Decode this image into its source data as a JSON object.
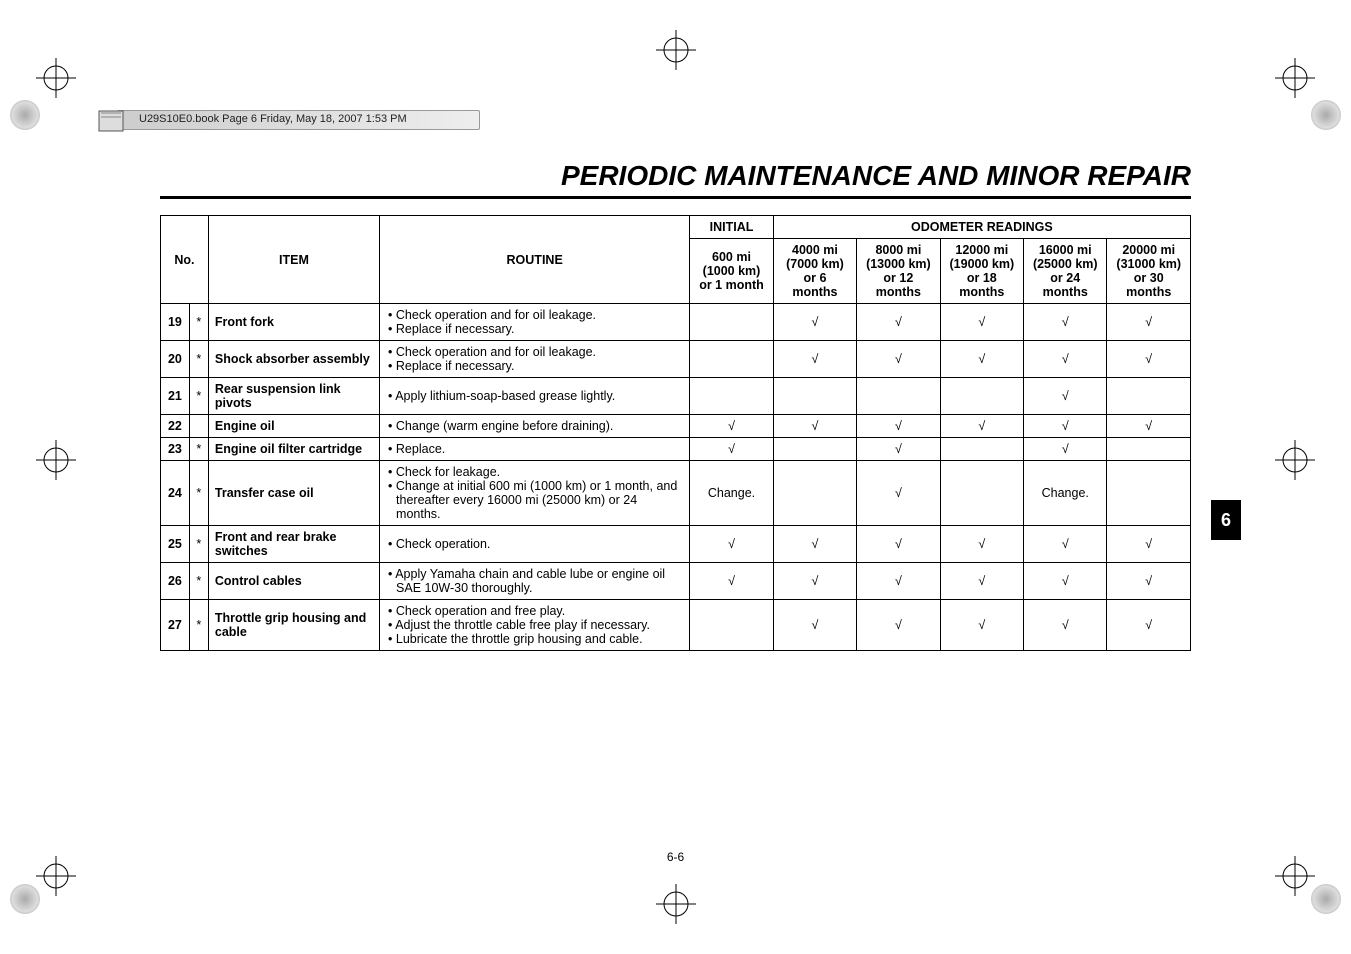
{
  "header_strip": "U29S10E0.book  Page 6  Friday, May 18, 2007  1:53 PM",
  "title": "PERIODIC MAINTENANCE AND MINOR REPAIR",
  "side_tab": "6",
  "page_number": "6-6",
  "table": {
    "head": {
      "no": "No.",
      "item": "ITEM",
      "routine": "ROUTINE",
      "initial": "INITIAL",
      "odometer": "ODOMETER READINGS",
      "intervals": [
        "600 mi (1000 km) or 1 month",
        "4000 mi (7000 km) or 6 months",
        "8000 mi (13000 km) or 12 months",
        "12000 mi (19000 km) or 18 months",
        "16000 mi (25000 km) or 24 months",
        "20000 mi (31000 km) or 30 months"
      ]
    },
    "rows": [
      {
        "no": "19",
        "star": "*",
        "item": "Front fork",
        "routine": [
          "Check operation and for oil leakage.",
          "Replace if necessary."
        ],
        "marks": [
          "",
          "√",
          "√",
          "√",
          "√",
          "√"
        ]
      },
      {
        "no": "20",
        "star": "*",
        "item": "Shock absorber assembly",
        "routine": [
          "Check operation and for oil leakage.",
          "Replace if necessary."
        ],
        "marks": [
          "",
          "√",
          "√",
          "√",
          "√",
          "√"
        ]
      },
      {
        "no": "21",
        "star": "*",
        "item": "Rear suspension link pivots",
        "routine": [
          "Apply lithium-soap-based grease lightly."
        ],
        "marks": [
          "",
          "",
          "",
          "",
          "√",
          ""
        ]
      },
      {
        "no": "22",
        "star": "",
        "item": "Engine oil",
        "routine": [
          "Change (warm engine before draining)."
        ],
        "marks": [
          "√",
          "√",
          "√",
          "√",
          "√",
          "√"
        ]
      },
      {
        "no": "23",
        "star": "*",
        "item": "Engine oil filter cartridge",
        "routine": [
          "Replace."
        ],
        "marks": [
          "√",
          "",
          "√",
          "",
          "√",
          ""
        ]
      },
      {
        "no": "24",
        "star": "*",
        "item": "Transfer case oil",
        "routine": [
          "Check for leakage.",
          "Change at initial 600 mi (1000 km) or 1 month, and thereafter every 16000 mi (25000 km) or 24 months."
        ],
        "marks": [
          "Change.",
          "",
          "√",
          "",
          "Change.",
          ""
        ]
      },
      {
        "no": "25",
        "star": "*",
        "item": "Front and rear brake switches",
        "routine": [
          "Check operation."
        ],
        "marks": [
          "√",
          "√",
          "√",
          "√",
          "√",
          "√"
        ]
      },
      {
        "no": "26",
        "star": "*",
        "item": "Control cables",
        "routine": [
          "Apply Yamaha chain and cable lube or engine oil SAE 10W-30 thoroughly."
        ],
        "marks": [
          "√",
          "√",
          "√",
          "√",
          "√",
          "√"
        ]
      },
      {
        "no": "27",
        "star": "*",
        "item": "Throttle grip housing and cable",
        "routine": [
          "Check operation and free play.",
          "Adjust the throttle cable free play if necessary.",
          "Lubricate the throttle grip housing and cable."
        ],
        "marks": [
          "",
          "√",
          "√",
          "√",
          "√",
          "√"
        ]
      }
    ]
  }
}
